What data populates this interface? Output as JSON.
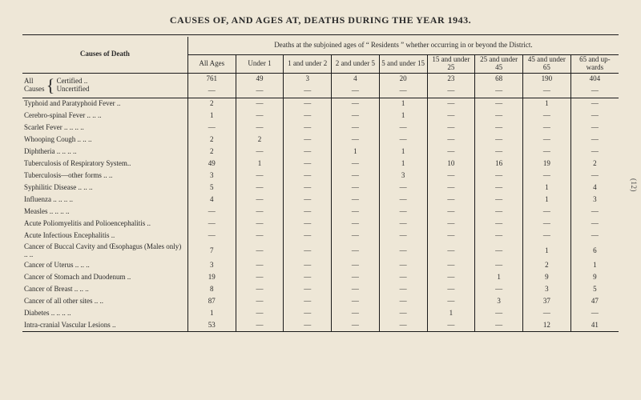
{
  "meta": {
    "title": "CAUSES OF, AND AGES AT, DEATHS DURING THE YEAR 1943.",
    "side_page_label": "(12)",
    "row_header": "Causes of Death",
    "span_header": "Deaths at the subjoined ages of “ Residents ” whether occurring in or beyond the District.",
    "em_dash": "—"
  },
  "style": {
    "background_color": "#eee7d7",
    "text_color": "#2a2a2a",
    "rule_color": "#1a1a1a",
    "font_family": "Times New Roman, serif",
    "title_fontsize_pt": 12,
    "body_fontsize_pt": 9
  },
  "columns": [
    {
      "key": "all",
      "label": "All Ages"
    },
    {
      "key": "u1",
      "label": "Under 1"
    },
    {
      "key": "u2",
      "label": "1 and under 2"
    },
    {
      "key": "u5",
      "label": "2 and under 5"
    },
    {
      "key": "u15",
      "label": "5 and under 15"
    },
    {
      "key": "u25",
      "label": "15 and under 25"
    },
    {
      "key": "u45",
      "label": "25 and under 45"
    },
    {
      "key": "u65",
      "label": "45 and under 65"
    },
    {
      "key": "up65",
      "label": "65 and up-wards"
    }
  ],
  "all_causes": {
    "lead_label": "All Causes",
    "certified_label": "Certified ..",
    "uncertified_label": "Uncertified",
    "certified": {
      "all": "761",
      "u1": "49",
      "u2": "3",
      "u5": "4",
      "u15": "20",
      "u25": "23",
      "u45": "68",
      "u65": "190",
      "up65": "404"
    },
    "uncertified": {
      "all": "—",
      "u1": "—",
      "u2": "—",
      "u5": "—",
      "u15": "—",
      "u25": "—",
      "u45": "—",
      "u65": "—",
      "up65": "—"
    }
  },
  "rows": [
    {
      "label": "Typhoid and Paratyphoid Fever ..",
      "v": {
        "all": "2",
        "u1": "—",
        "u2": "—",
        "u5": "—",
        "u15": "1",
        "u25": "—",
        "u45": "—",
        "u65": "1",
        "up65": "—"
      }
    },
    {
      "label": "Cerebro-spinal Fever .. .. ..",
      "v": {
        "all": "1",
        "u1": "—",
        "u2": "—",
        "u5": "—",
        "u15": "1",
        "u25": "—",
        "u45": "—",
        "u65": "—",
        "up65": "—"
      }
    },
    {
      "label": "Scarlet Fever .. .. .. ..",
      "v": {
        "all": "—",
        "u1": "—",
        "u2": "—",
        "u5": "—",
        "u15": "—",
        "u25": "—",
        "u45": "—",
        "u65": "—",
        "up65": "—"
      }
    },
    {
      "label": "Whooping Cough .. .. ..",
      "v": {
        "all": "2",
        "u1": "2",
        "u2": "—",
        "u5": "—",
        "u15": "—",
        "u25": "—",
        "u45": "—",
        "u65": "—",
        "up65": "—"
      }
    },
    {
      "label": "Diphtheria .. .. .. ..",
      "v": {
        "all": "2",
        "u1": "—",
        "u2": "—",
        "u5": "1",
        "u15": "1",
        "u25": "—",
        "u45": "—",
        "u65": "—",
        "up65": "—"
      }
    },
    {
      "label": "Tuberculosis of Respiratory System..",
      "v": {
        "all": "49",
        "u1": "1",
        "u2": "—",
        "u5": "—",
        "u15": "1",
        "u25": "10",
        "u45": "16",
        "u65": "19",
        "up65": "2"
      }
    },
    {
      "label": "Tuberculosis—other forms .. ..",
      "v": {
        "all": "3",
        "u1": "—",
        "u2": "—",
        "u5": "—",
        "u15": "3",
        "u25": "—",
        "u45": "—",
        "u65": "—",
        "up65": "—"
      }
    },
    {
      "label": "Syphilitic Disease .. .. ..",
      "v": {
        "all": "5",
        "u1": "—",
        "u2": "—",
        "u5": "—",
        "u15": "—",
        "u25": "—",
        "u45": "—",
        "u65": "1",
        "up65": "4"
      }
    },
    {
      "label": "Influenza .. .. .. ..",
      "v": {
        "all": "4",
        "u1": "—",
        "u2": "—",
        "u5": "—",
        "u15": "—",
        "u25": "—",
        "u45": "—",
        "u65": "1",
        "up65": "3"
      }
    },
    {
      "label": "Measles .. .. .. ..",
      "v": {
        "all": "—",
        "u1": "—",
        "u2": "—",
        "u5": "—",
        "u15": "—",
        "u25": "—",
        "u45": "—",
        "u65": "—",
        "up65": "—"
      }
    },
    {
      "label": "Acute Poliomyelitis and Polioencephalitis ..",
      "v": {
        "all": "—",
        "u1": "—",
        "u2": "—",
        "u5": "—",
        "u15": "—",
        "u25": "—",
        "u45": "—",
        "u65": "—",
        "up65": "—"
      }
    },
    {
      "label": "Acute Infectious Encephalitis ..",
      "v": {
        "all": "—",
        "u1": "—",
        "u2": "—",
        "u5": "—",
        "u15": "—",
        "u25": "—",
        "u45": "—",
        "u65": "—",
        "up65": "—"
      }
    },
    {
      "label": "Cancer of Buccal Cavity and Œsophagus (Males only) .. ..",
      "v": {
        "all": "7",
        "u1": "—",
        "u2": "—",
        "u5": "—",
        "u15": "—",
        "u25": "—",
        "u45": "—",
        "u65": "1",
        "up65": "6"
      }
    },
    {
      "label": "Cancer of Uterus .. .. ..",
      "v": {
        "all": "3",
        "u1": "—",
        "u2": "—",
        "u5": "—",
        "u15": "—",
        "u25": "—",
        "u45": "—",
        "u65": "2",
        "up65": "1"
      }
    },
    {
      "label": "Cancer of Stomach and Duodenum ..",
      "v": {
        "all": "19",
        "u1": "—",
        "u2": "—",
        "u5": "—",
        "u15": "—",
        "u25": "—",
        "u45": "1",
        "u65": "9",
        "up65": "9"
      }
    },
    {
      "label": "Cancer of Breast .. .. ..",
      "v": {
        "all": "8",
        "u1": "—",
        "u2": "—",
        "u5": "—",
        "u15": "—",
        "u25": "—",
        "u45": "—",
        "u65": "3",
        "up65": "5"
      }
    },
    {
      "label": "Cancer of all other sites .. ..",
      "v": {
        "all": "87",
        "u1": "—",
        "u2": "—",
        "u5": "—",
        "u15": "—",
        "u25": "—",
        "u45": "3",
        "u65": "37",
        "up65": "47"
      }
    },
    {
      "label": "Diabetes .. .. .. ..",
      "v": {
        "all": "1",
        "u1": "—",
        "u2": "—",
        "u5": "—",
        "u15": "—",
        "u25": "1",
        "u45": "—",
        "u65": "—",
        "up65": "—"
      }
    },
    {
      "label": "Intra-cranial Vascular Lesions ..",
      "v": {
        "all": "53",
        "u1": "—",
        "u2": "—",
        "u5": "—",
        "u15": "—",
        "u25": "—",
        "u45": "—",
        "u65": "12",
        "up65": "41"
      }
    }
  ]
}
